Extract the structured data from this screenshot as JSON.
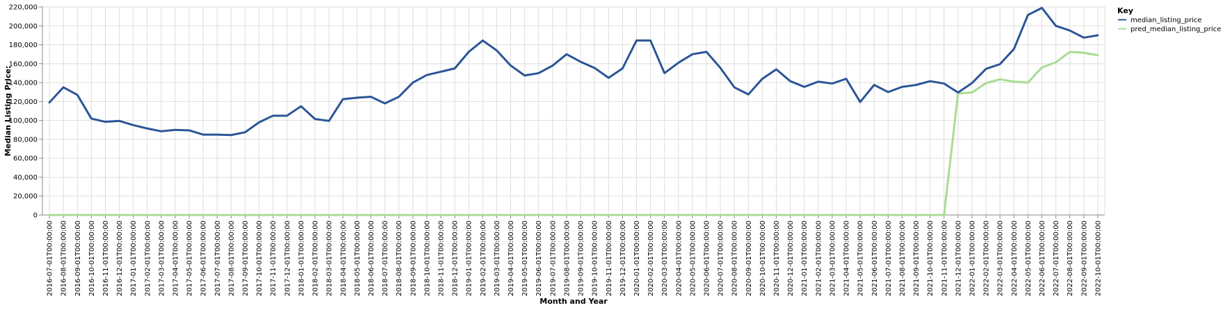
{
  "chart_data": {
    "type": "line",
    "xlabel": "Month and Year",
    "ylabel": "Median Listing Price:",
    "ylim": [
      0,
      220000
    ],
    "yticks": [
      0,
      20000,
      40000,
      60000,
      80000,
      100000,
      120000,
      140000,
      160000,
      180000,
      200000,
      220000
    ],
    "ytick_labels": [
      "0",
      "20,000",
      "40,000",
      "60,000",
      "80,000",
      "100,000",
      "120,000",
      "140,000",
      "160,000",
      "180,000",
      "200,000",
      "220,000"
    ],
    "grid": true,
    "legend": {
      "title": "Key",
      "placement": "top-right"
    },
    "x": [
      "2016-07-01T00:00:00",
      "2016-08-01T00:00:00",
      "2016-09-01T00:00:00",
      "2016-10-01T00:00:00",
      "2016-11-01T00:00:00",
      "2016-12-01T00:00:00",
      "2017-01-01T00:00:00",
      "2017-02-01T00:00:00",
      "2017-03-01T00:00:00",
      "2017-04-01T00:00:00",
      "2017-05-01T00:00:00",
      "2017-06-01T00:00:00",
      "2017-07-01T00:00:00",
      "2017-08-01T00:00:00",
      "2017-09-01T00:00:00",
      "2017-10-01T00:00:00",
      "2017-11-01T00:00:00",
      "2017-12-01T00:00:00",
      "2018-01-01T00:00:00",
      "2018-02-01T00:00:00",
      "2018-03-01T00:00:00",
      "2018-04-01T00:00:00",
      "2018-05-01T00:00:00",
      "2018-06-01T00:00:00",
      "2018-07-01T00:00:00",
      "2018-08-01T00:00:00",
      "2018-09-01T00:00:00",
      "2018-10-01T00:00:00",
      "2018-11-01T00:00:00",
      "2018-12-01T00:00:00",
      "2019-01-01T00:00:00",
      "2019-02-01T00:00:00",
      "2019-03-01T00:00:00",
      "2019-04-01T00:00:00",
      "2019-05-01T00:00:00",
      "2019-06-01T00:00:00",
      "2019-07-01T00:00:00",
      "2019-08-01T00:00:00",
      "2019-09-01T00:00:00",
      "2019-10-01T00:00:00",
      "2019-11-01T00:00:00",
      "2019-12-01T00:00:00",
      "2020-01-01T00:00:00",
      "2020-02-01T00:00:00",
      "2020-03-01T00:00:00",
      "2020-04-01T00:00:00",
      "2020-05-01T00:00:00",
      "2020-06-01T00:00:00",
      "2020-07-01T00:00:00",
      "2020-08-01T00:00:00",
      "2020-09-01T00:00:00",
      "2020-10-01T00:00:00",
      "2020-11-01T00:00:00",
      "2020-12-01T00:00:00",
      "2021-01-01T00:00:00",
      "2021-02-01T00:00:00",
      "2021-03-01T00:00:00",
      "2021-04-01T00:00:00",
      "2021-05-01T00:00:00",
      "2021-06-01T00:00:00",
      "2021-07-01T00:00:00",
      "2021-08-01T00:00:00",
      "2021-09-01T00:00:00",
      "2021-10-01T00:00:00",
      "2021-11-01T00:00:00",
      "2021-12-01T00:00:00",
      "2022-01-01T00:00:00",
      "2022-02-01T00:00:00",
      "2022-03-01T00:00:00",
      "2022-04-01T00:00:00",
      "2022-05-01T00:00:00",
      "2022-06-01T00:00:00",
      "2022-07-01T00:00:00",
      "2022-08-01T00:00:00",
      "2022-09-01T00:00:00",
      "2022-10-01T00:00:00"
    ],
    "series": [
      {
        "name": "median_listing_price",
        "color": "#2b5597",
        "values": [
          119000,
          135000,
          127000,
          102000,
          98500,
          99500,
          95000,
          91500,
          88500,
          90000,
          89500,
          85000,
          85000,
          84500,
          87500,
          98000,
          105000,
          105000,
          115000,
          101500,
          99500,
          122500,
          124000,
          125000,
          118000,
          125000,
          140000,
          148000,
          151500,
          155000,
          172500,
          184500,
          174000,
          158000,
          147500,
          150000,
          158000,
          170000,
          162000,
          155500,
          145000,
          155000,
          184500,
          184500,
          150000,
          161000,
          170000,
          172500,
          155500,
          135000,
          127500,
          144000,
          154000,
          141500,
          135500,
          141000,
          139000,
          144000,
          119500,
          137500,
          130000,
          135500,
          137500,
          141500,
          139000,
          129500,
          139500,
          154500,
          159500,
          175500,
          211500,
          219000,
          200000,
          195000,
          187500,
          190000
        ]
      },
      {
        "name": "pred_median_listing_price",
        "color": "#a8dc94",
        "values": [
          0,
          0,
          0,
          0,
          0,
          0,
          0,
          0,
          0,
          0,
          0,
          0,
          0,
          0,
          0,
          0,
          0,
          0,
          0,
          0,
          0,
          0,
          0,
          0,
          0,
          0,
          0,
          0,
          0,
          0,
          0,
          0,
          0,
          0,
          0,
          0,
          0,
          0,
          0,
          0,
          0,
          0,
          0,
          0,
          0,
          0,
          0,
          0,
          0,
          0,
          0,
          0,
          0,
          0,
          0,
          0,
          0,
          0,
          0,
          0,
          0,
          0,
          0,
          0,
          0,
          128500,
          129500,
          139500,
          143500,
          141000,
          140000,
          156000,
          161500,
          172500,
          171500,
          169000
        ]
      }
    ]
  }
}
